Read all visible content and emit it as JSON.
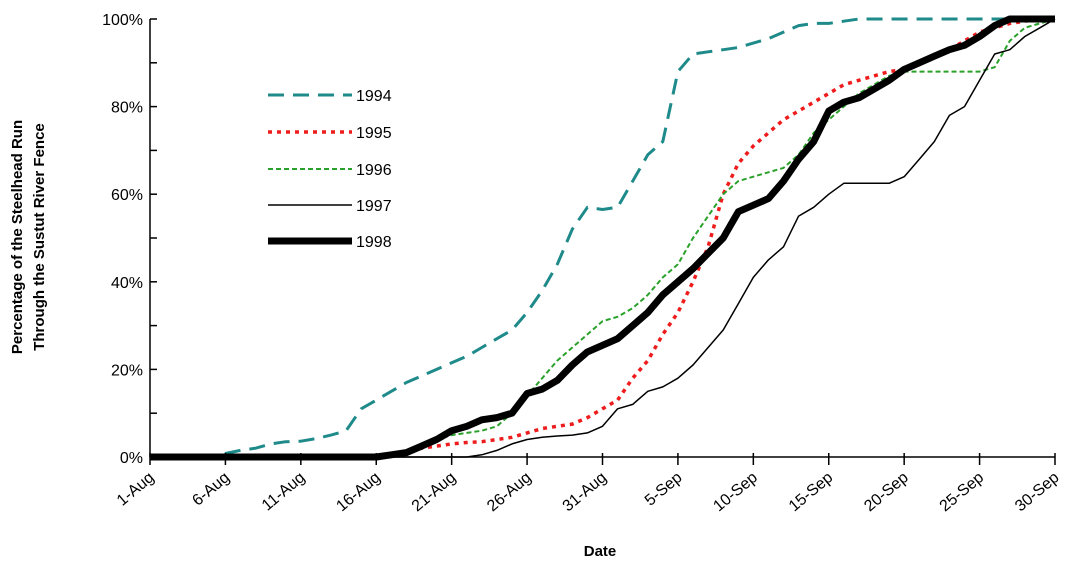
{
  "chart_data": {
    "type": "line",
    "xlabel": "Date",
    "ylabel": [
      "Percentage of the Steelhead Run",
      "Through the Sustut River Fence"
    ],
    "x_tick_labels": [
      "1-Aug",
      "6-Aug",
      "11-Aug",
      "16-Aug",
      "21-Aug",
      "26-Aug",
      "31-Aug",
      "5-Sep",
      "10-Sep",
      "15-Sep",
      "20-Sep",
      "25-Sep",
      "30-Sep"
    ],
    "y_tick_labels": [
      "0%",
      "20%",
      "40%",
      "60%",
      "80%",
      "100%"
    ],
    "xlim": [
      "1-Aug",
      "30-Sep"
    ],
    "ylim": [
      0,
      100
    ],
    "grid": false,
    "legend_position": "upper-left",
    "series": [
      {
        "name": "1994",
        "color": "#1f8a8a",
        "style": "long-dash",
        "points": [
          [
            "1-Aug",
            0
          ],
          [
            "4-Aug",
            0
          ],
          [
            "5-Aug",
            0.3
          ],
          [
            "6-Aug",
            0.8
          ],
          [
            "7-Aug",
            1.5
          ],
          [
            "8-Aug",
            2
          ],
          [
            "9-Aug",
            3
          ],
          [
            "10-Aug",
            3.5
          ],
          [
            "11-Aug",
            3.6
          ],
          [
            "12-Aug",
            4.2
          ],
          [
            "13-Aug",
            5
          ],
          [
            "14-Aug",
            6
          ],
          [
            "15-Aug",
            11
          ],
          [
            "16-Aug",
            13
          ],
          [
            "17-Aug",
            15
          ],
          [
            "18-Aug",
            17
          ],
          [
            "19-Aug",
            18.5
          ],
          [
            "20-Aug",
            20
          ],
          [
            "21-Aug",
            21.5
          ],
          [
            "22-Aug",
            23
          ],
          [
            "23-Aug",
            25
          ],
          [
            "24-Aug",
            27
          ],
          [
            "25-Aug",
            29
          ],
          [
            "26-Aug",
            33
          ],
          [
            "27-Aug",
            38
          ],
          [
            "28-Aug",
            44
          ],
          [
            "29-Aug",
            52
          ],
          [
            "30-Aug",
            57
          ],
          [
            "31-Aug",
            56.5
          ],
          [
            "1-Sep",
            57
          ],
          [
            "2-Sep",
            63
          ],
          [
            "3-Sep",
            69
          ],
          [
            "4-Sep",
            72
          ],
          [
            "5-Sep",
            88
          ],
          [
            "6-Sep",
            92
          ],
          [
            "7-Sep",
            92.5
          ],
          [
            "8-Sep",
            93
          ],
          [
            "9-Sep",
            93.5
          ],
          [
            "10-Sep",
            94.5
          ],
          [
            "11-Sep",
            95.5
          ],
          [
            "12-Sep",
            97
          ],
          [
            "13-Sep",
            98.5
          ],
          [
            "14-Sep",
            99
          ],
          [
            "15-Sep",
            99
          ],
          [
            "16-Sep",
            99.5
          ],
          [
            "17-Sep",
            100
          ],
          [
            "30-Sep",
            100
          ]
        ]
      },
      {
        "name": "1995",
        "color": "#ee1c1c",
        "style": "dotted",
        "points": [
          [
            "1-Aug",
            0
          ],
          [
            "16-Aug",
            0
          ],
          [
            "17-Aug",
            0.5
          ],
          [
            "18-Aug",
            1
          ],
          [
            "19-Aug",
            2
          ],
          [
            "20-Aug",
            2.5
          ],
          [
            "21-Aug",
            3
          ],
          [
            "22-Aug",
            3.3
          ],
          [
            "23-Aug",
            3.5
          ],
          [
            "24-Aug",
            4
          ],
          [
            "25-Aug",
            4.5
          ],
          [
            "26-Aug",
            5.5
          ],
          [
            "27-Aug",
            6.5
          ],
          [
            "28-Aug",
            7
          ],
          [
            "29-Aug",
            7.5
          ],
          [
            "30-Aug",
            9
          ],
          [
            "31-Aug",
            11
          ],
          [
            "1-Sep",
            13
          ],
          [
            "2-Sep",
            18
          ],
          [
            "3-Sep",
            22
          ],
          [
            "4-Sep",
            28
          ],
          [
            "5-Sep",
            33
          ],
          [
            "6-Sep",
            40
          ],
          [
            "7-Sep",
            48
          ],
          [
            "8-Sep",
            60
          ],
          [
            "9-Sep",
            67
          ],
          [
            "10-Sep",
            71
          ],
          [
            "11-Sep",
            74
          ],
          [
            "12-Sep",
            77
          ],
          [
            "13-Sep",
            79
          ],
          [
            "14-Sep",
            81
          ],
          [
            "15-Sep",
            83
          ],
          [
            "16-Sep",
            85
          ],
          [
            "17-Sep",
            86
          ],
          [
            "18-Sep",
            87
          ],
          [
            "19-Sep",
            88
          ],
          [
            "20-Sep",
            88.5
          ],
          [
            "21-Sep",
            90
          ],
          [
            "22-Sep",
            91.5
          ],
          [
            "23-Sep",
            93
          ],
          [
            "24-Sep",
            95
          ],
          [
            "25-Sep",
            97
          ],
          [
            "26-Sep",
            98
          ],
          [
            "27-Sep",
            99
          ],
          [
            "28-Sep",
            99.5
          ],
          [
            "29-Sep",
            100
          ],
          [
            "30-Sep",
            100
          ]
        ]
      },
      {
        "name": "1996",
        "color": "#2aa12a",
        "style": "dash",
        "points": [
          [
            "1-Aug",
            0
          ],
          [
            "16-Aug",
            0
          ],
          [
            "17-Aug",
            0.5
          ],
          [
            "18-Aug",
            1.5
          ],
          [
            "19-Aug",
            3
          ],
          [
            "20-Aug",
            4
          ],
          [
            "21-Aug",
            5
          ],
          [
            "22-Aug",
            5.5
          ],
          [
            "23-Aug",
            6
          ],
          [
            "24-Aug",
            7
          ],
          [
            "25-Aug",
            10
          ],
          [
            "26-Aug",
            14
          ],
          [
            "27-Aug",
            18
          ],
          [
            "28-Aug",
            22
          ],
          [
            "29-Aug",
            25
          ],
          [
            "30-Aug",
            28
          ],
          [
            "31-Aug",
            31
          ],
          [
            "1-Sep",
            32
          ],
          [
            "2-Sep",
            34
          ],
          [
            "3-Sep",
            37
          ],
          [
            "4-Sep",
            41
          ],
          [
            "5-Sep",
            44
          ],
          [
            "6-Sep",
            50
          ],
          [
            "7-Sep",
            55
          ],
          [
            "8-Sep",
            60
          ],
          [
            "9-Sep",
            63
          ],
          [
            "10-Sep",
            64
          ],
          [
            "11-Sep",
            65
          ],
          [
            "12-Sep",
            66
          ],
          [
            "13-Sep",
            69
          ],
          [
            "14-Sep",
            74
          ],
          [
            "15-Sep",
            77
          ],
          [
            "16-Sep",
            80
          ],
          [
            "17-Sep",
            83
          ],
          [
            "18-Sep",
            85
          ],
          [
            "19-Sep",
            87
          ],
          [
            "20-Sep",
            88
          ],
          [
            "21-Sep",
            88
          ],
          [
            "22-Sep",
            88
          ],
          [
            "23-Sep",
            88
          ],
          [
            "24-Sep",
            88
          ],
          [
            "25-Sep",
            88
          ],
          [
            "26-Sep",
            89
          ],
          [
            "27-Sep",
            95
          ],
          [
            "28-Sep",
            98
          ],
          [
            "29-Sep",
            99
          ],
          [
            "30-Sep",
            100
          ]
        ]
      },
      {
        "name": "1997",
        "color": "#000000",
        "style": "solid-thin",
        "points": [
          [
            "1-Aug",
            0
          ],
          [
            "22-Aug",
            0
          ],
          [
            "23-Aug",
            0.5
          ],
          [
            "24-Aug",
            1.5
          ],
          [
            "25-Aug",
            3
          ],
          [
            "26-Aug",
            4
          ],
          [
            "27-Aug",
            4.5
          ],
          [
            "28-Aug",
            4.8
          ],
          [
            "29-Aug",
            5
          ],
          [
            "30-Aug",
            5.5
          ],
          [
            "31-Aug",
            7
          ],
          [
            "1-Sep",
            11
          ],
          [
            "2-Sep",
            12
          ],
          [
            "3-Sep",
            15
          ],
          [
            "4-Sep",
            16
          ],
          [
            "5-Sep",
            18
          ],
          [
            "6-Sep",
            21
          ],
          [
            "7-Sep",
            25
          ],
          [
            "8-Sep",
            29
          ],
          [
            "9-Sep",
            35
          ],
          [
            "10-Sep",
            41
          ],
          [
            "11-Sep",
            45
          ],
          [
            "12-Sep",
            48
          ],
          [
            "13-Sep",
            55
          ],
          [
            "14-Sep",
            57
          ],
          [
            "15-Sep",
            60
          ],
          [
            "16-Sep",
            62.5
          ],
          [
            "17-Sep",
            62.5
          ],
          [
            "18-Sep",
            62.5
          ],
          [
            "19-Sep",
            62.5
          ],
          [
            "20-Sep",
            64
          ],
          [
            "21-Sep",
            68
          ],
          [
            "22-Sep",
            72
          ],
          [
            "23-Sep",
            78
          ],
          [
            "24-Sep",
            80
          ],
          [
            "25-Sep",
            86
          ],
          [
            "26-Sep",
            92
          ],
          [
            "27-Sep",
            93
          ],
          [
            "28-Sep",
            96
          ],
          [
            "29-Sep",
            98
          ],
          [
            "30-Sep",
            100
          ]
        ]
      },
      {
        "name": "1998",
        "color": "#000000",
        "style": "solid-thick",
        "points": [
          [
            "1-Aug",
            0
          ],
          [
            "6-Aug",
            0
          ],
          [
            "16-Aug",
            0
          ],
          [
            "17-Aug",
            0.5
          ],
          [
            "18-Aug",
            1
          ],
          [
            "19-Aug",
            2.5
          ],
          [
            "20-Aug",
            4
          ],
          [
            "21-Aug",
            6
          ],
          [
            "22-Aug",
            7
          ],
          [
            "23-Aug",
            8.5
          ],
          [
            "24-Aug",
            9
          ],
          [
            "25-Aug",
            10
          ],
          [
            "26-Aug",
            14.5
          ],
          [
            "27-Aug",
            15.5
          ],
          [
            "28-Aug",
            17.5
          ],
          [
            "29-Aug",
            21
          ],
          [
            "30-Aug",
            24
          ],
          [
            "31-Aug",
            25.5
          ],
          [
            "1-Sep",
            27
          ],
          [
            "2-Sep",
            30
          ],
          [
            "3-Sep",
            33
          ],
          [
            "4-Sep",
            37
          ],
          [
            "5-Sep",
            40
          ],
          [
            "6-Sep",
            43
          ],
          [
            "7-Sep",
            46.5
          ],
          [
            "8-Sep",
            50
          ],
          [
            "9-Sep",
            56
          ],
          [
            "10-Sep",
            57.5
          ],
          [
            "11-Sep",
            59
          ],
          [
            "12-Sep",
            63
          ],
          [
            "13-Sep",
            68
          ],
          [
            "14-Sep",
            72
          ],
          [
            "15-Sep",
            79
          ],
          [
            "16-Sep",
            81
          ],
          [
            "17-Sep",
            82
          ],
          [
            "18-Sep",
            84
          ],
          [
            "19-Sep",
            86
          ],
          [
            "20-Sep",
            88.5
          ],
          [
            "21-Sep",
            90
          ],
          [
            "22-Sep",
            91.5
          ],
          [
            "23-Sep",
            93
          ],
          [
            "24-Sep",
            94
          ],
          [
            "25-Sep",
            96
          ],
          [
            "26-Sep",
            98.5
          ],
          [
            "27-Sep",
            100
          ],
          [
            "28-Sep",
            100
          ],
          [
            "30-Sep",
            100
          ]
        ]
      }
    ]
  }
}
